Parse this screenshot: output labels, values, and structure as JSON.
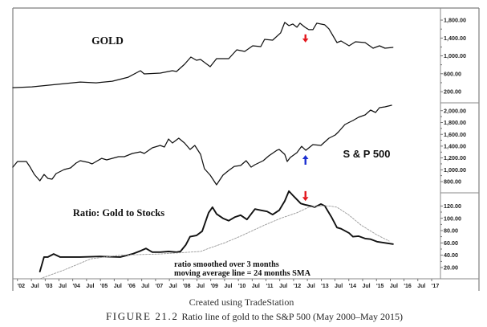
{
  "figure": {
    "credit": "Created using TradeStation",
    "label": "FIGURE 21.2",
    "caption": "Ratio line of gold to the S&P 500 (May 2000–May 2015)"
  },
  "x_axis": {
    "xlim": [
      2001.83,
      2017.32
    ],
    "first_tick": 2002,
    "tick_step": 0.5,
    "labels": [
      "'02",
      "Jul",
      "'03",
      "Jul",
      "'04",
      "Jul",
      "'05",
      "Jul",
      "'06",
      "Jul",
      "'07",
      "Jul",
      "'08",
      "Jul",
      "'09",
      "Jul",
      "'10",
      "Jul",
      "'11",
      "Jul",
      "'12",
      "Jul",
      "'13",
      "Jul",
      "'14",
      "Jul",
      "'15",
      "Jul",
      "'16",
      "Jul",
      "'17"
    ]
  },
  "chart_data": [
    {
      "type": "line",
      "title": "GOLD",
      "xlabel": "",
      "ylabel": "",
      "ylim": [
        -50,
        2070
      ],
      "grid": false,
      "y_axis": {
        "side": "right",
        "ticks": [
          1800,
          1400,
          1000,
          600,
          200
        ],
        "tick_labels": [
          "1,800.00",
          "1,400.00",
          "1,000.00",
          "600.00",
          "200.00"
        ]
      },
      "series": [
        {
          "name": "Gold",
          "style": "solid",
          "color": "#111111",
          "points": [
            [
              2001.83,
              290
            ],
            [
              2002.52,
              308
            ],
            [
              2003.1,
              344
            ],
            [
              2003.69,
              380
            ],
            [
              2004.27,
              416
            ],
            [
              2004.85,
              398
            ],
            [
              2005.43,
              434
            ],
            [
              2006.01,
              524
            ],
            [
              2006.45,
              668
            ],
            [
              2006.59,
              596
            ],
            [
              2007.17,
              614
            ],
            [
              2007.61,
              668
            ],
            [
              2007.76,
              650
            ],
            [
              2008.05,
              812
            ],
            [
              2008.28,
              974
            ],
            [
              2008.48,
              902
            ],
            [
              2008.63,
              920
            ],
            [
              2008.98,
              758
            ],
            [
              2009.21,
              938
            ],
            [
              2009.65,
              938
            ],
            [
              2009.94,
              1136
            ],
            [
              2010.23,
              1100
            ],
            [
              2010.52,
              1226
            ],
            [
              2010.81,
              1208
            ],
            [
              2010.95,
              1370
            ],
            [
              2011.24,
              1352
            ],
            [
              2011.53,
              1514
            ],
            [
              2011.68,
              1748
            ],
            [
              2011.83,
              1676
            ],
            [
              2011.97,
              1712
            ],
            [
              2012.12,
              1640
            ],
            [
              2012.23,
              1730
            ],
            [
              2012.41,
              1640
            ],
            [
              2012.55,
              1586
            ],
            [
              2012.7,
              1586
            ],
            [
              2012.84,
              1730
            ],
            [
              2013.13,
              1694
            ],
            [
              2013.28,
              1604
            ],
            [
              2013.57,
              1298
            ],
            [
              2013.72,
              1334
            ],
            [
              2014.01,
              1226
            ],
            [
              2014.24,
              1316
            ],
            [
              2014.59,
              1298
            ],
            [
              2014.88,
              1172
            ],
            [
              2015.11,
              1226
            ],
            [
              2015.31,
              1172
            ],
            [
              2015.6,
              1190
            ]
          ]
        }
      ],
      "annotations": [
        {
          "type": "arrow",
          "direction": "down",
          "x": 2012.43,
          "y_from": 1480,
          "y_to": 1300,
          "color": "#e3161c"
        }
      ]
    },
    {
      "type": "line",
      "title": "S & P 500",
      "xlabel": "",
      "ylabel": "",
      "ylim": [
        610,
        2133
      ],
      "grid": false,
      "y_axis": {
        "side": "right",
        "ticks": [
          2000,
          1800,
          1600,
          1400,
          1200,
          1000,
          800
        ],
        "tick_labels": [
          "2,000.00",
          "1,800.00",
          "1,600.00",
          "1,400.00",
          "1,200.00",
          "1,000.00",
          "800.00"
        ]
      },
      "series": [
        {
          "name": "S&P 500",
          "style": "solid",
          "color": "#111111",
          "points": [
            [
              2001.83,
              1045
            ],
            [
              2002.0,
              1140
            ],
            [
              2002.32,
              1140
            ],
            [
              2002.44,
              1058
            ],
            [
              2002.61,
              922
            ],
            [
              2002.81,
              814
            ],
            [
              2002.96,
              922
            ],
            [
              2003.1,
              854
            ],
            [
              2003.25,
              841
            ],
            [
              2003.4,
              936
            ],
            [
              2003.69,
              1004
            ],
            [
              2003.92,
              1031
            ],
            [
              2004.12,
              1113
            ],
            [
              2004.27,
              1154
            ],
            [
              2004.56,
              1126
            ],
            [
              2004.7,
              1099
            ],
            [
              2004.85,
              1140
            ],
            [
              2005.05,
              1194
            ],
            [
              2005.23,
              1167
            ],
            [
              2005.43,
              1194
            ],
            [
              2005.66,
              1222
            ],
            [
              2005.87,
              1222
            ],
            [
              2006.16,
              1276
            ],
            [
              2006.45,
              1303
            ],
            [
              2006.59,
              1276
            ],
            [
              2006.88,
              1371
            ],
            [
              2007.17,
              1412
            ],
            [
              2007.32,
              1385
            ],
            [
              2007.47,
              1521
            ],
            [
              2007.61,
              1453
            ],
            [
              2007.84,
              1534
            ],
            [
              2008.05,
              1453
            ],
            [
              2008.25,
              1344
            ],
            [
              2008.42,
              1412
            ],
            [
              2008.63,
              1262
            ],
            [
              2008.77,
              1018
            ],
            [
              2008.98,
              909
            ],
            [
              2009.21,
              746
            ],
            [
              2009.44,
              909
            ],
            [
              2009.65,
              990
            ],
            [
              2009.85,
              1058
            ],
            [
              2010.08,
              1072
            ],
            [
              2010.28,
              1154
            ],
            [
              2010.46,
              1045
            ],
            [
              2010.6,
              1086
            ],
            [
              2010.9,
              1154
            ],
            [
              2011.1,
              1235
            ],
            [
              2011.39,
              1330
            ],
            [
              2011.48,
              1344
            ],
            [
              2011.68,
              1262
            ],
            [
              2011.77,
              1140
            ],
            [
              2011.88,
              1208
            ],
            [
              2012.12,
              1290
            ],
            [
              2012.29,
              1398
            ],
            [
              2012.44,
              1330
            ],
            [
              2012.7,
              1426
            ],
            [
              2012.99,
              1412
            ],
            [
              2013.28,
              1534
            ],
            [
              2013.51,
              1589
            ],
            [
              2013.63,
              1643
            ],
            [
              2013.86,
              1766
            ],
            [
              2014.03,
              1806
            ],
            [
              2014.15,
              1834
            ],
            [
              2014.35,
              1888
            ],
            [
              2014.59,
              1929
            ],
            [
              2014.79,
              2010
            ],
            [
              2014.97,
              1970
            ],
            [
              2015.11,
              2051
            ],
            [
              2015.31,
              2065
            ],
            [
              2015.55,
              2092
            ]
          ]
        }
      ],
      "annotations": [
        {
          "type": "arrow",
          "direction": "up",
          "x": 2012.43,
          "y_from": 1086,
          "y_to": 1249,
          "color": "#1b2fd1"
        }
      ]
    },
    {
      "type": "line",
      "title": "Ratio: Gold to Stocks",
      "xlabel": "",
      "ylabel": "",
      "ylim": [
        1.7,
        141.3
      ],
      "grid": false,
      "y_axis": {
        "side": "right",
        "ticks": [
          120,
          100,
          80,
          60,
          40,
          20
        ],
        "tick_labels": [
          "120.00",
          "100.00",
          "80.00",
          "60.00",
          "40.00",
          "20.00"
        ]
      },
      "notes": [
        "ratio smoothed over 3 months",
        "moving average line = 24 months SMA"
      ],
      "series": [
        {
          "name": "Gold/Stocks ratio (3-month smoothed)",
          "style": "solid",
          "color": "#111111",
          "points": [
            [
              2002.81,
              13.5
            ],
            [
              2002.96,
              37
            ],
            [
              2003.1,
              37
            ],
            [
              2003.31,
              42
            ],
            [
              2003.54,
              37
            ],
            [
              2003.83,
              37
            ],
            [
              2004.27,
              37
            ],
            [
              2004.99,
              38
            ],
            [
              2005.72,
              37
            ],
            [
              2006.16,
              42
            ],
            [
              2006.45,
              47
            ],
            [
              2006.65,
              51
            ],
            [
              2006.88,
              45
            ],
            [
              2007.17,
              45
            ],
            [
              2007.47,
              46
            ],
            [
              2007.76,
              45
            ],
            [
              2007.9,
              46
            ],
            [
              2008.1,
              57
            ],
            [
              2008.25,
              70
            ],
            [
              2008.48,
              72
            ],
            [
              2008.69,
              79
            ],
            [
              2008.92,
              109
            ],
            [
              2009.06,
              118
            ],
            [
              2009.21,
              107
            ],
            [
              2009.44,
              100
            ],
            [
              2009.65,
              96
            ],
            [
              2009.88,
              102
            ],
            [
              2010.08,
              105
            ],
            [
              2010.31,
              98
            ],
            [
              2010.6,
              115
            ],
            [
              2010.81,
              113
            ],
            [
              2011.04,
              111
            ],
            [
              2011.24,
              106
            ],
            [
              2011.48,
              113
            ],
            [
              2011.68,
              128
            ],
            [
              2011.83,
              144
            ],
            [
              2012.0,
              136
            ],
            [
              2012.26,
              124
            ],
            [
              2012.41,
              122
            ],
            [
              2012.61,
              120
            ],
            [
              2012.76,
              118
            ],
            [
              2012.99,
              123
            ],
            [
              2013.13,
              120
            ],
            [
              2013.37,
              102
            ],
            [
              2013.57,
              85
            ],
            [
              2013.72,
              83
            ],
            [
              2014.01,
              76
            ],
            [
              2014.15,
              70
            ],
            [
              2014.35,
              71
            ],
            [
              2014.59,
              67
            ],
            [
              2014.79,
              66
            ],
            [
              2015.02,
              62
            ],
            [
              2015.31,
              60
            ],
            [
              2015.6,
              58
            ]
          ]
        },
        {
          "name": "24-month SMA",
          "style": "dashed",
          "color": "#9a9a9a",
          "points": [
            [
              2002.81,
              1.7
            ],
            [
              2003.69,
              16
            ],
            [
              2004.65,
              34
            ],
            [
              2005.72,
              40
            ],
            [
              2007.17,
              42
            ],
            [
              2008.63,
              46
            ],
            [
              2008.92,
              51
            ],
            [
              2009.5,
              60
            ],
            [
              2010.08,
              71
            ],
            [
              2010.95,
              89
            ],
            [
              2011.53,
              100
            ],
            [
              2012.12,
              109
            ],
            [
              2012.55,
              118
            ],
            [
              2012.99,
              120
            ],
            [
              2013.28,
              120
            ],
            [
              2013.57,
              118
            ],
            [
              2014.01,
              105
            ],
            [
              2014.44,
              89
            ],
            [
              2015.02,
              73
            ],
            [
              2015.46,
              63
            ]
          ]
        }
      ],
      "annotations": [
        {
          "type": "arrow",
          "direction": "down",
          "x": 2012.43,
          "y_from": 144,
          "y_to": 128,
          "color": "#e3161c"
        }
      ]
    }
  ]
}
